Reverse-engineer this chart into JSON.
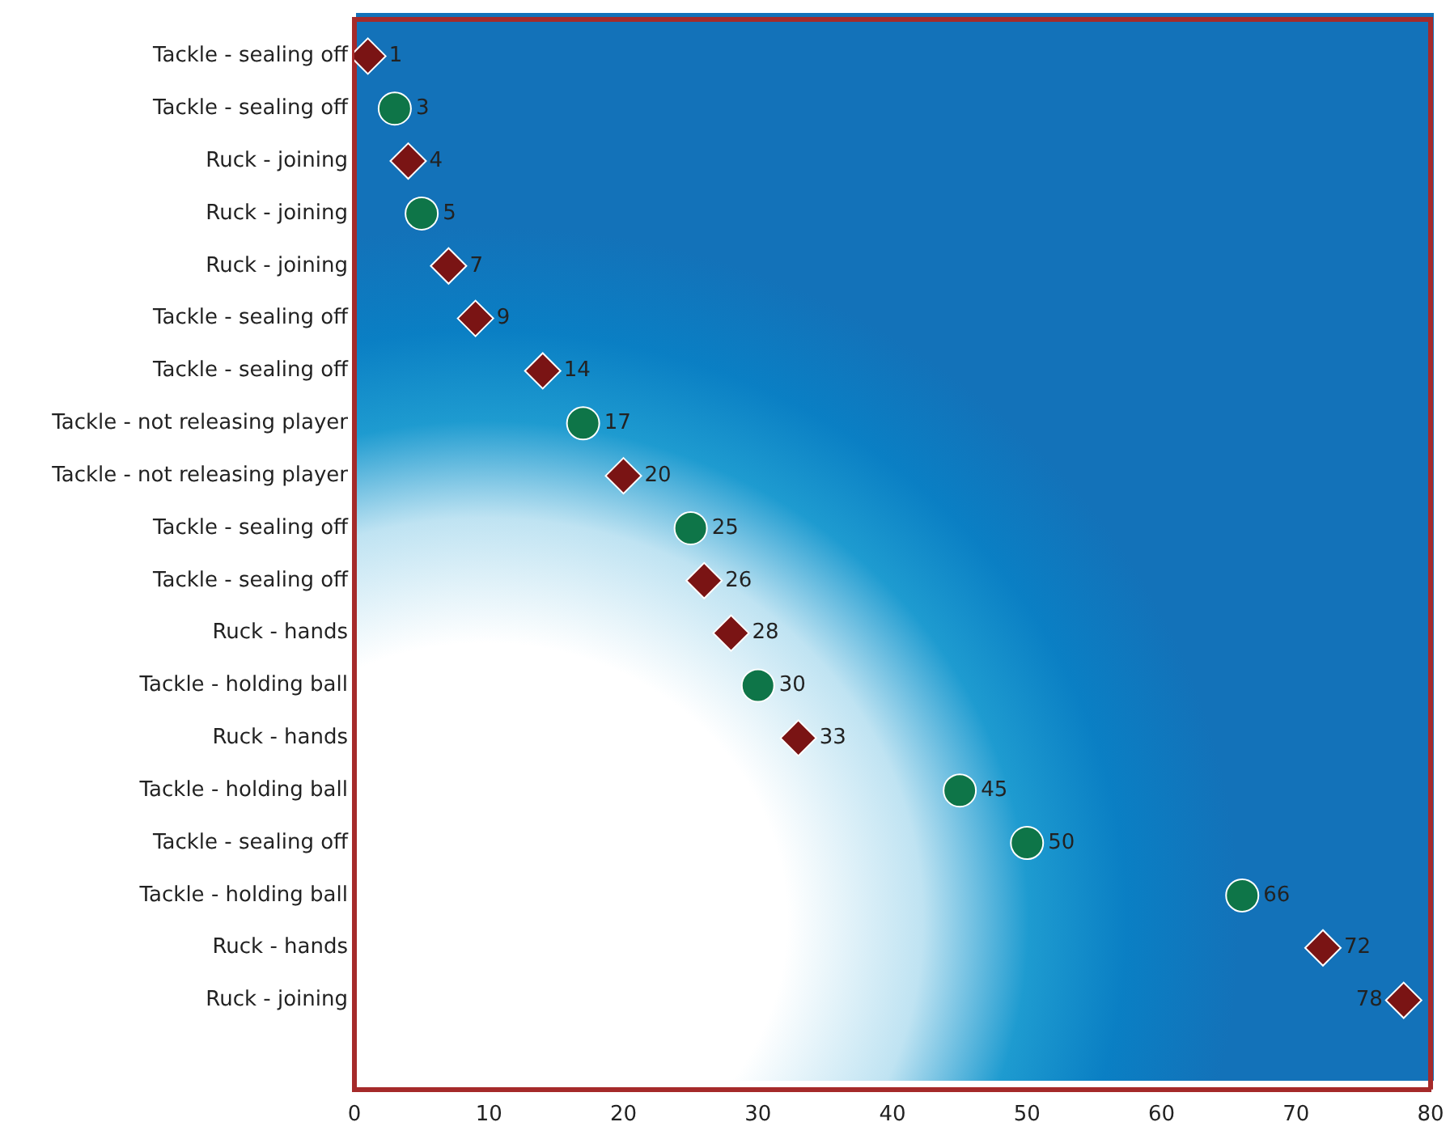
{
  "chart_data": {
    "type": "scatter",
    "orientation": "horizontal",
    "categories": [
      "Tackle - sealing off",
      "Tackle - sealing off",
      "Ruck - joining",
      "Ruck - joining",
      "Ruck - joining",
      "Tackle - sealing off",
      "Tackle - sealing off",
      "Tackle - not releasing player",
      "Tackle - not releasing player",
      "Tackle - sealing off",
      "Tackle - sealing off",
      "Ruck - hands",
      "Tackle - holding ball",
      "Ruck - hands",
      "Tackle - holding ball",
      "Tackle - sealing off",
      "Tackle - holding ball",
      "Ruck - hands",
      "Ruck - joining"
    ],
    "series": [
      {
        "color": "#7a1414",
        "marker": "diamond",
        "values": [
          1,
          null,
          4,
          null,
          7,
          9,
          14,
          null,
          20,
          null,
          26,
          28,
          null,
          33,
          null,
          null,
          null,
          72,
          78
        ]
      },
      {
        "color": "#0e7548",
        "marker": "circle",
        "values": [
          null,
          3,
          null,
          5,
          null,
          null,
          null,
          17,
          null,
          25,
          null,
          null,
          30,
          null,
          45,
          50,
          66,
          null,
          null
        ]
      }
    ],
    "xlim": [
      0,
      80
    ],
    "xticks": [
      0,
      10,
      20,
      30,
      40,
      50,
      60,
      70,
      80
    ],
    "data_labels": true,
    "grid": false,
    "legend": false
  }
}
